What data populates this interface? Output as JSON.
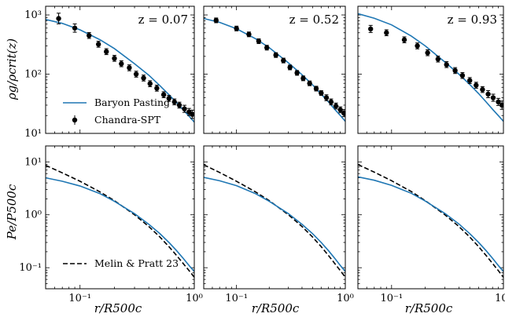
{
  "figure": {
    "top_ylabel": "ρg/ρcrit(z)",
    "bottom_ylabel": "Pe/P500c",
    "xlabel": "r/R500c",
    "x_tick_labels": [
      "10⁻¹",
      "10⁰"
    ],
    "top_y_tick_labels": [
      "10¹",
      "10²",
      "10³"
    ],
    "bottom_y_tick_labels": [
      "10⁻¹",
      "10⁰",
      "10¹"
    ],
    "legend_top": {
      "model": "Baryon Pasting",
      "obs": "Chandra-SPT"
    },
    "legend_bottom": {
      "ref": "Melin & Pratt 23"
    }
  },
  "colors": {
    "model": "#1f77b4",
    "obs": "#000000",
    "ref": "#000000"
  },
  "chart_data": [
    {
      "type": "line",
      "panel": "density",
      "title": "z = 0.07",
      "xscale": "log",
      "yscale": "log",
      "xlim": [
        0.05,
        1.0
      ],
      "ylim": [
        10,
        1400
      ],
      "model_curve": {
        "x": [
          0.05,
          0.07,
          0.1,
          0.15,
          0.2,
          0.3,
          0.4,
          0.5,
          0.6,
          0.7,
          0.8,
          0.9,
          1.0
        ],
        "y": [
          840,
          720,
          560,
          380,
          270,
          150,
          96,
          64,
          45,
          33,
          25,
          19.5,
          15.5
        ]
      },
      "observations": {
        "x": [
          0.065,
          0.09,
          0.12,
          0.145,
          0.17,
          0.2,
          0.23,
          0.27,
          0.31,
          0.36,
          0.41,
          0.47,
          0.54,
          0.6,
          0.67,
          0.74,
          0.82,
          0.9,
          0.96
        ],
        "y": [
          870,
          600,
          450,
          320,
          240,
          185,
          150,
          128,
          100,
          86,
          69,
          58,
          45,
          39,
          34,
          30,
          26,
          23,
          21
        ],
        "err": [
          0.09,
          0.07,
          0.05,
          0.05,
          0.05,
          0.05,
          0.05,
          0.05,
          0.05,
          0.05,
          0.05,
          0.05,
          0.05,
          0.05,
          0.05,
          0.05,
          0.06,
          0.06,
          0.07
        ]
      }
    },
    {
      "type": "line",
      "panel": "density",
      "title": "z = 0.52",
      "xscale": "log",
      "yscale": "log",
      "xlim": [
        0.05,
        1.0
      ],
      "ylim": [
        10,
        1400
      ],
      "model_curve": {
        "x": [
          0.05,
          0.07,
          0.1,
          0.15,
          0.2,
          0.3,
          0.4,
          0.5,
          0.6,
          0.7,
          0.8,
          0.9,
          1.0
        ],
        "y": [
          870,
          750,
          585,
          395,
          280,
          155,
          98,
          66,
          46,
          34,
          25.5,
          20,
          16
        ]
      },
      "observations": {
        "x": [
          0.065,
          0.1,
          0.13,
          0.16,
          0.19,
          0.23,
          0.27,
          0.31,
          0.36,
          0.41,
          0.47,
          0.54,
          0.6,
          0.67,
          0.74,
          0.82,
          0.9,
          0.97
        ],
        "y": [
          810,
          590,
          470,
          360,
          280,
          210,
          170,
          130,
          105,
          85,
          70,
          57,
          48,
          40,
          34,
          29,
          25,
          22
        ],
        "err": [
          0.04,
          0.04,
          0.04,
          0.04,
          0.04,
          0.04,
          0.04,
          0.04,
          0.04,
          0.04,
          0.04,
          0.04,
          0.04,
          0.05,
          0.05,
          0.05,
          0.05,
          0.06
        ]
      }
    },
    {
      "type": "line",
      "panel": "density",
      "title": "z = 0.93",
      "xscale": "log",
      "yscale": "log",
      "xlim": [
        0.05,
        1.0
      ],
      "ylim": [
        10,
        1400
      ],
      "model_curve": {
        "x": [
          0.05,
          0.07,
          0.1,
          0.15,
          0.2,
          0.3,
          0.4,
          0.5,
          0.6,
          0.7,
          0.8,
          0.9,
          1.0
        ],
        "y": [
          1050,
          880,
          680,
          440,
          300,
          160,
          100,
          67,
          47,
          34,
          25.5,
          20,
          16
        ]
      },
      "observations": {
        "x": [
          0.065,
          0.09,
          0.13,
          0.17,
          0.21,
          0.26,
          0.31,
          0.37,
          0.43,
          0.5,
          0.57,
          0.65,
          0.73,
          0.81,
          0.9,
          0.97
        ],
        "y": [
          580,
          500,
          380,
          300,
          230,
          180,
          145,
          115,
          95,
          78,
          65,
          55,
          46,
          40,
          34,
          30
        ],
        "err": [
          0.06,
          0.05,
          0.05,
          0.05,
          0.05,
          0.05,
          0.05,
          0.05,
          0.05,
          0.05,
          0.05,
          0.05,
          0.06,
          0.06,
          0.06,
          0.07
        ]
      }
    },
    {
      "type": "line",
      "panel": "pressure",
      "xscale": "log",
      "yscale": "log",
      "xlim": [
        0.05,
        1.0
      ],
      "ylim": [
        0.04,
        20
      ],
      "model_curve": {
        "x": [
          0.05,
          0.07,
          0.1,
          0.15,
          0.2,
          0.3,
          0.4,
          0.5,
          0.6,
          0.7,
          0.8,
          0.9,
          1.0
        ],
        "y": [
          5.0,
          4.3,
          3.5,
          2.5,
          1.8,
          1.05,
          0.66,
          0.44,
          0.3,
          0.21,
          0.15,
          0.11,
          0.085
        ]
      },
      "reference_curve": {
        "x": [
          0.05,
          0.07,
          0.1,
          0.15,
          0.2,
          0.3,
          0.4,
          0.5,
          0.6,
          0.7,
          0.8,
          0.9,
          1.0
        ],
        "y": [
          8.6,
          6.2,
          4.3,
          2.7,
          1.85,
          1.0,
          0.6,
          0.38,
          0.25,
          0.17,
          0.12,
          0.088,
          0.066
        ]
      }
    },
    {
      "type": "line",
      "panel": "pressure",
      "xscale": "log",
      "yscale": "log",
      "xlim": [
        0.05,
        1.0
      ],
      "ylim": [
        0.04,
        20
      ],
      "model_curve": {
        "x": [
          0.05,
          0.07,
          0.1,
          0.15,
          0.2,
          0.3,
          0.4,
          0.5,
          0.6,
          0.7,
          0.8,
          0.9,
          1.0
        ],
        "y": [
          5.1,
          4.4,
          3.55,
          2.5,
          1.8,
          1.05,
          0.66,
          0.44,
          0.3,
          0.21,
          0.15,
          0.11,
          0.085
        ]
      },
      "reference_curve": {
        "x": [
          0.05,
          0.07,
          0.1,
          0.15,
          0.2,
          0.3,
          0.4,
          0.5,
          0.6,
          0.7,
          0.8,
          0.9,
          1.0
        ],
        "y": [
          8.8,
          6.3,
          4.3,
          2.7,
          1.85,
          1.0,
          0.6,
          0.38,
          0.25,
          0.17,
          0.12,
          0.088,
          0.066
        ]
      }
    },
    {
      "type": "line",
      "panel": "pressure",
      "xscale": "log",
      "yscale": "log",
      "xlim": [
        0.05,
        1.0
      ],
      "ylim": [
        0.04,
        20
      ],
      "model_curve": {
        "x": [
          0.05,
          0.07,
          0.1,
          0.15,
          0.2,
          0.3,
          0.4,
          0.5,
          0.6,
          0.7,
          0.8,
          0.9,
          1.0
        ],
        "y": [
          5.2,
          4.5,
          3.6,
          2.55,
          1.82,
          1.06,
          0.67,
          0.44,
          0.3,
          0.21,
          0.15,
          0.11,
          0.085
        ]
      },
      "reference_curve": {
        "x": [
          0.05,
          0.07,
          0.1,
          0.15,
          0.2,
          0.3,
          0.4,
          0.5,
          0.6,
          0.7,
          0.8,
          0.9,
          1.0
        ],
        "y": [
          8.9,
          6.4,
          4.4,
          2.75,
          1.85,
          1.0,
          0.6,
          0.38,
          0.25,
          0.17,
          0.12,
          0.088,
          0.066
        ]
      }
    }
  ]
}
